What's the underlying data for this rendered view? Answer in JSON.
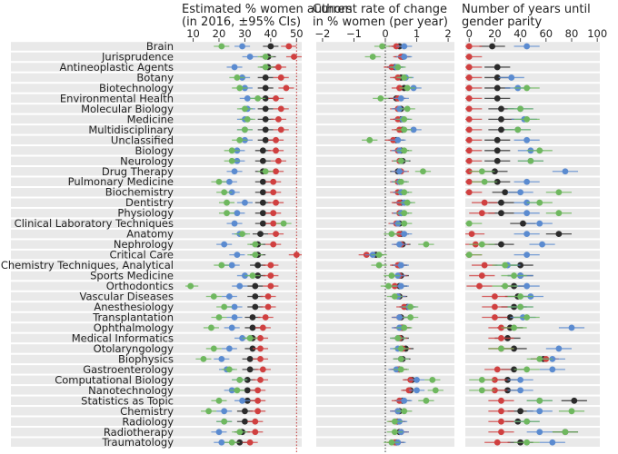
{
  "chart_data": {
    "type": "scatter",
    "series": [
      {
        "color": "#2b2b2b"
      },
      {
        "color": "#d04040"
      },
      {
        "color": "#5b8bd0"
      },
      {
        "color": "#6fb85f"
      }
    ],
    "categories": [
      "Brain",
      "Jurisprudence",
      "Antineoplastic Agents",
      "Botany",
      "Biotechnology",
      "Environmental Health",
      "Molecular Biology",
      "Medicine",
      "Multidisciplinary",
      "Unclassified",
      "Biology",
      "Neurology",
      "Drug Therapy",
      "Pulmonary Medicine",
      "Biochemistry",
      "Dentistry",
      "Physiology",
      "Clinical Laboratory Techniques",
      "Anatomy",
      "Nephrology",
      "Critical Care",
      "Chemistry Techniques, Analytical",
      "Sports Medicine",
      "Orthodontics",
      "Vascular Diseases",
      "Anesthesiology",
      "Transplantation",
      "Ophthalmology",
      "Medical Informatics",
      "Otolaryngology",
      "Biophysics",
      "Gastroenterology",
      "Computational Biology",
      "Nanotechnology",
      "Statistics as Topic",
      "Chemistry",
      "Radiology",
      "Radiotherapy",
      "Traumatology"
    ],
    "panels": [
      {
        "title_line1": "Estimated % women authors",
        "title_line2": "(in 2016, ±95% CIs)",
        "xlim": [
          7,
          52
        ],
        "ticks": [
          10,
          20,
          30,
          40,
          50
        ],
        "reference_line": 50,
        "reference_style": "dotted-red",
        "values": [
          [
            40,
            47,
            29,
            21
          ],
          [
            39,
            49,
            32,
            38
          ],
          [
            39,
            43,
            26,
            38
          ],
          [
            38,
            44,
            29,
            27
          ],
          [
            38,
            46,
            30,
            28
          ],
          [
            38,
            42,
            31,
            35
          ],
          [
            38,
            44,
            31,
            30
          ],
          [
            38,
            43,
            30,
            31
          ],
          [
            38,
            44,
            30,
            30
          ],
          [
            38,
            42,
            30,
            28
          ],
          [
            37,
            42,
            27,
            25
          ],
          [
            37,
            43,
            27,
            25
          ],
          [
            37,
            42,
            26,
            38
          ],
          [
            37,
            41,
            24,
            20
          ],
          [
            37,
            41,
            25,
            22
          ],
          [
            37,
            42,
            30,
            23
          ],
          [
            37,
            41,
            27,
            23
          ],
          [
            37,
            41,
            26,
            45
          ],
          [
            36,
            42,
            28,
            29
          ],
          [
            35,
            41,
            22,
            34
          ],
          [
            35,
            50,
            27,
            34
          ],
          [
            35,
            40,
            25,
            21
          ],
          [
            35,
            40,
            30,
            33
          ],
          [
            34,
            40,
            28,
            9
          ],
          [
            34,
            39,
            24,
            18
          ],
          [
            34,
            39,
            26,
            22
          ],
          [
            33,
            38,
            26,
            20
          ],
          [
            33,
            37,
            25,
            17
          ],
          [
            33,
            36,
            29,
            32
          ],
          [
            33,
            36,
            24,
            18
          ],
          [
            32,
            36,
            21,
            14
          ],
          [
            32,
            37,
            23,
            24
          ],
          [
            31,
            36,
            28,
            28
          ],
          [
            31,
            35,
            25,
            27
          ],
          [
            31,
            35,
            29,
            20
          ],
          [
            30,
            35,
            22,
            16
          ],
          [
            30,
            34,
            22,
            22
          ],
          [
            29,
            34,
            20,
            28
          ],
          [
            28,
            32,
            21,
            25
          ]
        ]
      },
      {
        "title_line1": "Current rate of change",
        "title_line2": "in % women (per year)",
        "xlim": [
          -2.2,
          2.2
        ],
        "ticks": [
          -2,
          -1,
          0,
          1,
          2
        ],
        "reference_line": 0,
        "reference_style": "dotted-dark",
        "values": [
          [
            0.45,
            0.35,
            0.6,
            -0.1
          ],
          [
            0.55,
            0.5,
            0.6,
            -0.4
          ],
          [
            0.3,
            0.2,
            0.35,
            0.4
          ],
          [
            0.5,
            0.4,
            0.65,
            0.6
          ],
          [
            0.6,
            0.45,
            0.9,
            0.7
          ],
          [
            0.35,
            0.4,
            0.5,
            -0.15
          ],
          [
            0.5,
            0.4,
            0.45,
            0.7
          ],
          [
            0.5,
            0.4,
            0.55,
            0.6
          ],
          [
            0.55,
            0.45,
            0.9,
            0.6
          ],
          [
            0.35,
            0.25,
            0.4,
            -0.5
          ],
          [
            0.5,
            0.4,
            0.45,
            0.6
          ],
          [
            0.55,
            0.45,
            0.5,
            0.5
          ],
          [
            0.4,
            0.5,
            0.45,
            1.2
          ],
          [
            0.45,
            0.4,
            0.45,
            0.5
          ],
          [
            0.5,
            0.4,
            0.5,
            0.6
          ],
          [
            0.5,
            0.45,
            0.6,
            0.7
          ],
          [
            0.5,
            0.45,
            0.5,
            0.6
          ],
          [
            0.45,
            0.35,
            0.4,
            0.6
          ],
          [
            0.5,
            0.45,
            0.6,
            0.2
          ],
          [
            0.55,
            0.5,
            0.45,
            1.3
          ],
          [
            -0.3,
            -0.6,
            -0.4,
            -0.2
          ],
          [
            0.45,
            0.4,
            0.5,
            -0.2
          ],
          [
            0.5,
            0.45,
            0.4,
            0.2
          ],
          [
            0.45,
            0.3,
            0.5,
            0.1
          ],
          [
            0.45,
            0.4,
            0.4,
            0.3
          ],
          [
            0.7,
            0.6,
            0.75,
            0.8
          ],
          [
            0.5,
            0.45,
            0.45,
            0.8
          ],
          [
            0.55,
            0.5,
            0.45,
            0.6
          ],
          [
            0.5,
            0.45,
            0.4,
            0.4
          ],
          [
            0.65,
            0.55,
            0.4,
            0.5
          ],
          [
            0.55,
            0.5,
            0.5,
            0.5
          ],
          [
            0.45,
            0.4,
            0.35,
            0.5
          ],
          [
            0.85,
            0.8,
            1.0,
            1.5
          ],
          [
            0.8,
            0.75,
            1.0,
            1.6
          ],
          [
            0.55,
            0.45,
            0.6,
            1.3
          ],
          [
            0.45,
            0.4,
            0.4,
            0.6
          ],
          [
            0.4,
            0.35,
            0.45,
            0.3
          ],
          [
            0.45,
            0.5,
            0.5,
            0.3
          ],
          [
            0.35,
            0.3,
            0.4,
            0.2
          ]
        ]
      },
      {
        "title_line1": "Number of years until",
        "title_line2": "gender parity",
        "xlim": [
          -3,
          102
        ],
        "ticks": [
          0,
          20,
          40,
          60,
          80,
          100
        ],
        "reference_line": null,
        "reference_style": "none",
        "values": [
          [
            18,
            0,
            45,
            null
          ],
          [
            null,
            0,
            null,
            null
          ],
          [
            22,
            0,
            null,
            null
          ],
          [
            22,
            0,
            33,
            null
          ],
          [
            22,
            0,
            38,
            45
          ],
          [
            22,
            0,
            null,
            null
          ],
          [
            25,
            0,
            40,
            40
          ],
          [
            25,
            0,
            43,
            45
          ],
          [
            25,
            0,
            38,
            38
          ],
          [
            22,
            0,
            45,
            null
          ],
          [
            22,
            0,
            48,
            55
          ],
          [
            22,
            0,
            48,
            48
          ],
          [
            20,
            0,
            75,
            10
          ],
          [
            22,
            0,
            45,
            12
          ],
          [
            28,
            0,
            40,
            70
          ],
          [
            25,
            12,
            45,
            55
          ],
          [
            25,
            10,
            45,
            70
          ],
          [
            42,
            null,
            55,
            0
          ],
          [
            70,
            2,
            45,
            null
          ],
          [
            25,
            5,
            57,
            10
          ],
          [
            null,
            0,
            45,
            0
          ],
          [
            40,
            12,
            30,
            28
          ],
          [
            40,
            10,
            40,
            35
          ],
          [
            35,
            8,
            45,
            28
          ],
          [
            38,
            20,
            48,
            40
          ],
          [
            35,
            20,
            40,
            40
          ],
          [
            32,
            20,
            42,
            45
          ],
          [
            32,
            25,
            80,
            35
          ],
          [
            30,
            25,
            null,
            null
          ],
          [
            35,
            25,
            70,
            25
          ],
          [
            58,
            60,
            65,
            55
          ],
          [
            35,
            22,
            65,
            45
          ],
          [
            30,
            20,
            40,
            10
          ],
          [
            30,
            20,
            40,
            10
          ],
          [
            82,
            25,
            55,
            55
          ],
          [
            40,
            25,
            55,
            80
          ],
          [
            38,
            25,
            45,
            45
          ],
          [
            75,
            25,
            55,
            75
          ],
          [
            40,
            22,
            65,
            45
          ]
        ]
      }
    ]
  }
}
